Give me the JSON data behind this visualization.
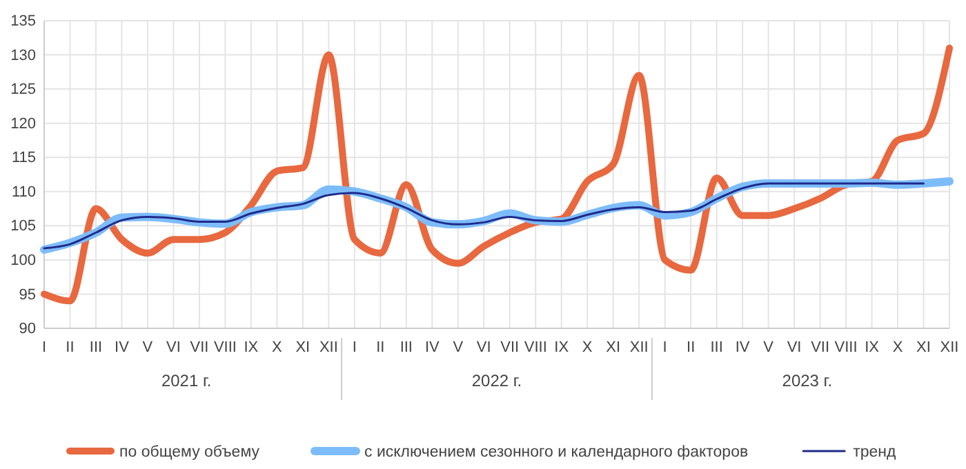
{
  "chart_data": {
    "type": "line",
    "categories": [
      "I",
      "II",
      "III",
      "IV",
      "V",
      "VI",
      "VII",
      "VIII",
      "IX",
      "X",
      "XI",
      "XII",
      "I",
      "II",
      "III",
      "IV",
      "V",
      "VI",
      "VII",
      "VIII",
      "IX",
      "X",
      "XI",
      "XII",
      "I",
      "II",
      "III",
      "IV",
      "V",
      "VI",
      "VII",
      "VIII",
      "IX",
      "X",
      "XI",
      "XII"
    ],
    "series": [
      {
        "name": "по общему объему",
        "color": "#e8683f",
        "values": [
          95,
          94,
          107.5,
          103,
          101,
          103,
          103,
          104,
          108,
          113,
          113.5,
          130,
          103,
          101,
          111,
          101.5,
          99.5,
          102,
          104,
          105.5,
          106,
          111.5,
          114,
          127,
          100,
          98.5,
          112,
          106.5,
          106.5,
          107.5,
          109,
          111,
          111.5,
          117.5,
          118.5,
          131
        ]
      },
      {
        "name": "с исключением сезонного и календарного факторов",
        "color": "#7dbcfa",
        "values": [
          101.5,
          102.5,
          104,
          106.2,
          106.3,
          106,
          105.5,
          105.3,
          107,
          107.7,
          108,
          110.3,
          110,
          109,
          107.7,
          105.5,
          105.2,
          105.7,
          106.8,
          105.8,
          105.6,
          106.6,
          107.6,
          108,
          106.5,
          107,
          109,
          110.7,
          111.2,
          111.2,
          111.2,
          111.2,
          111.3,
          111,
          111.2,
          111.5
        ]
      },
      {
        "name": "тренд",
        "color": "#1f2a8a",
        "values": [
          101.7,
          102.3,
          104,
          105.8,
          106.3,
          106.1,
          105.6,
          105.6,
          106.8,
          107.6,
          108.2,
          109.5,
          109.8,
          109,
          107.6,
          105.8,
          105.2,
          105.5,
          106.3,
          105.8,
          105.7,
          106.6,
          107.4,
          107.7,
          107,
          107.2,
          108.9,
          110.5,
          111.2,
          111.2,
          111.2,
          111.2,
          111.2,
          111.2,
          111.2,
          null
        ]
      }
    ],
    "annotations": [
      "2021 г.",
      "2022 г.",
      "2023 г."
    ],
    "ylim": [
      90,
      135
    ],
    "yticks": [
      90,
      95,
      100,
      105,
      110,
      115,
      120,
      125,
      130,
      135
    ],
    "grid": true,
    "legend": "bottom",
    "marker": "none",
    "line_style": "solid"
  }
}
